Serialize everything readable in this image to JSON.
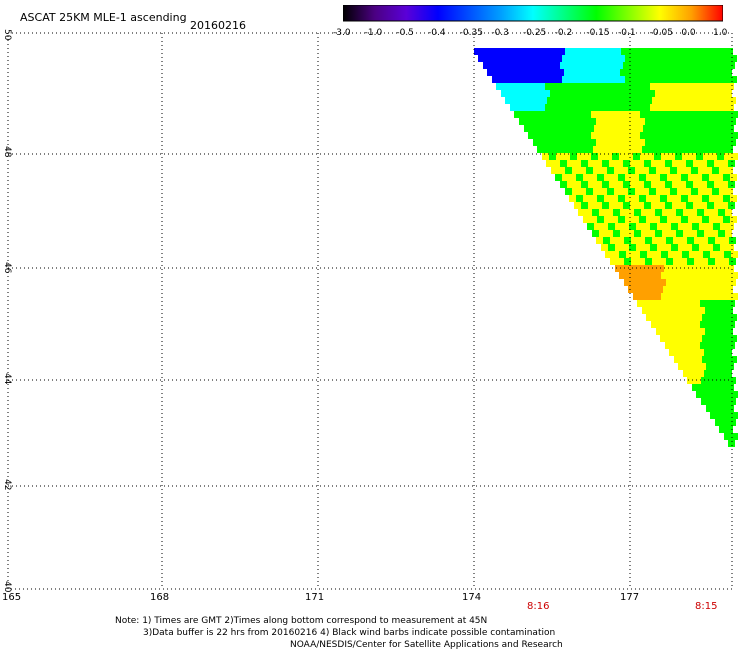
{
  "header": {
    "title": "ASCAT 25KM MLE-1 ascending",
    "date": "20160216"
  },
  "colorbar": {
    "tick_labels": [
      "-3.0",
      "-1.0",
      "-0.5",
      "-0.4",
      "-0.35",
      "-0.3",
      "-0.25",
      "-0.2",
      "-0.15",
      "-0.1",
      "-0.05",
      "0.0",
      "1.0"
    ],
    "stops": [
      "#000000",
      "#4b0082",
      "#5a00d8",
      "#0000ff",
      "#0050ff",
      "#00a0ff",
      "#00ffff",
      "#00ff80",
      "#00ff00",
      "#80ff00",
      "#ffff00",
      "#ffa000",
      "#ff0000"
    ]
  },
  "map": {
    "lat_labels": [
      "50",
      "48",
      "46",
      "44",
      "42",
      "40"
    ],
    "lon_labels": [
      "165",
      "168",
      "171",
      "174",
      "177"
    ],
    "time_labels": [
      "8:16",
      "8:15"
    ]
  },
  "footer": {
    "line1": "Note: 1) Times are GMT 2)Times along bottom correspond to measurement at 45N",
    "line2": "3)Data buffer is 22 hrs from 20160216 4) Black wind barbs indicate possible contamination",
    "line3": "NOAA/NESDIS/Center for Satellite Applications and Research"
  },
  "colors": {
    "blue_region": "#0000ff",
    "cyan_region": "#00ffff",
    "green_region": "#00ff00",
    "yellow_region": "#ffff00",
    "orange_region": "#ffa000"
  }
}
